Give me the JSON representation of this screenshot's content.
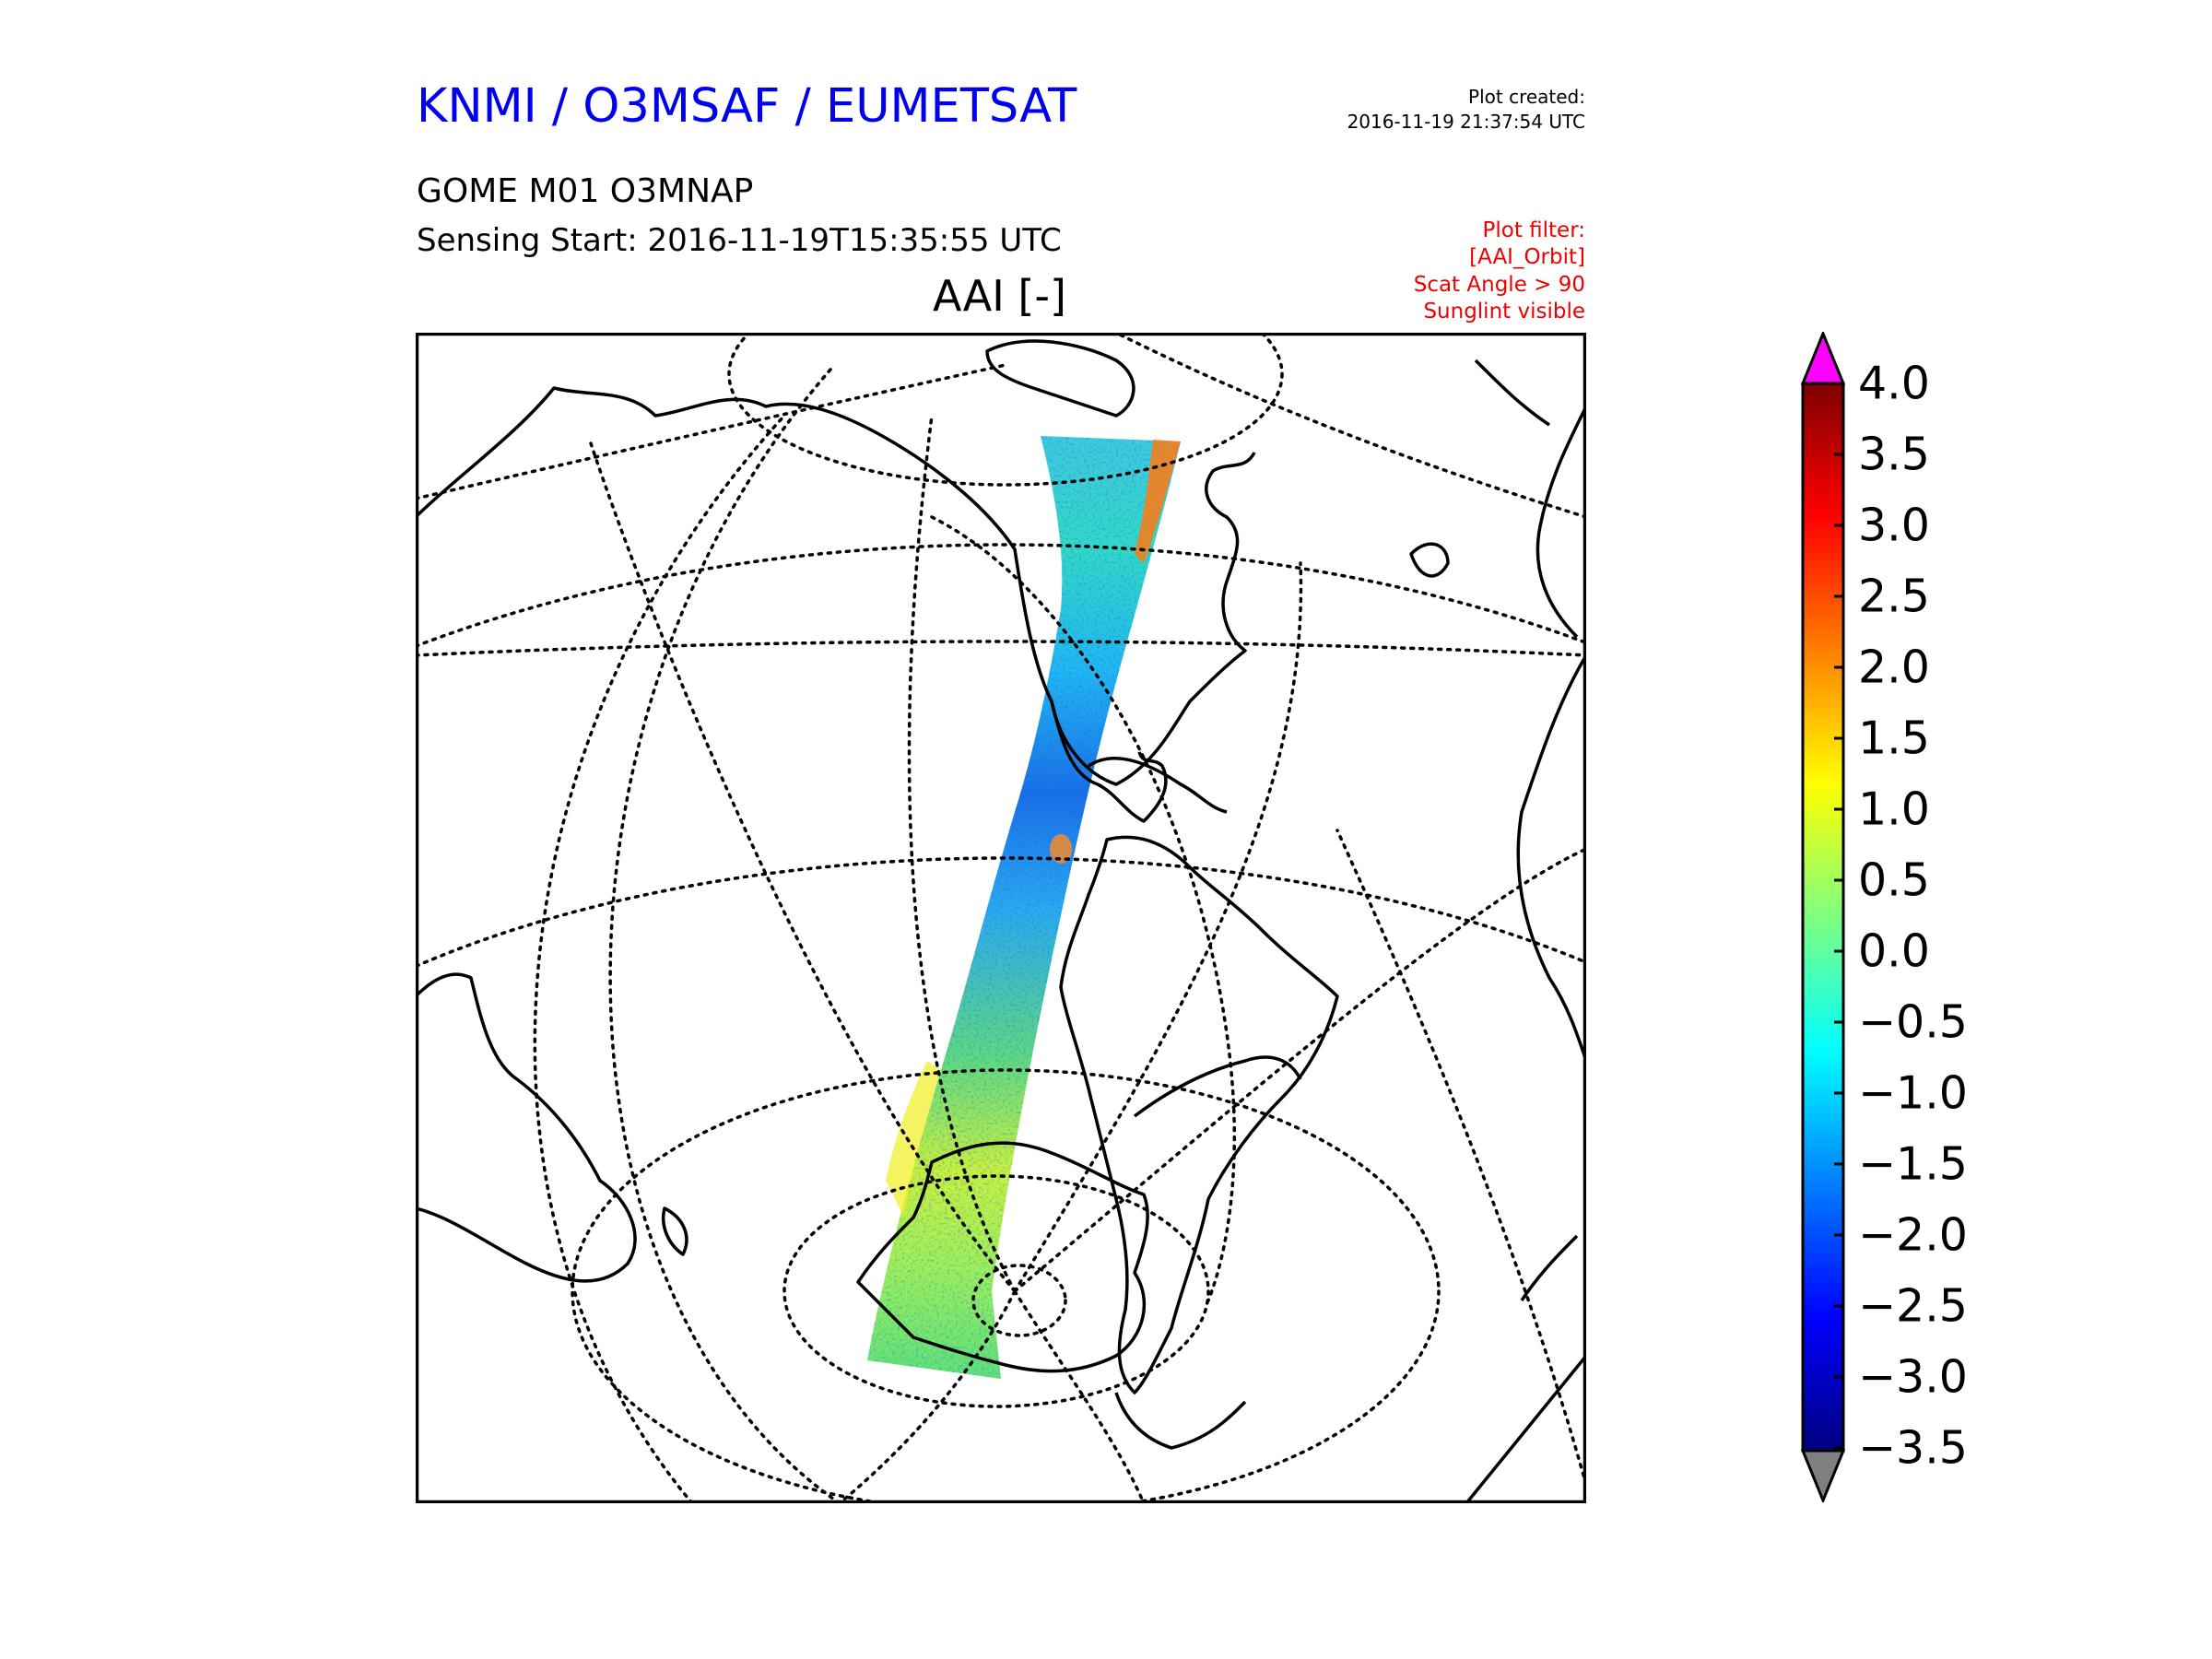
{
  "header": {
    "org_title": "KNMI / O3MSAF / EUMETSAT",
    "plot_created_label": "Plot created:",
    "plot_created_time": "2016-11-19 21:37:54 UTC",
    "product": "GOME M01 O3MNAP",
    "sensing_start": "Sensing Start: 2016-11-19T15:35:55 UTC",
    "filter_lines": [
      "Plot filter:",
      "[AAI_Orbit]",
      "Scat Angle > 90",
      "Sunglint visible"
    ],
    "variable_title": "AAI [-]"
  },
  "map": {
    "projection": "orthographic",
    "graticule": "dotted",
    "coastlines": true,
    "swath_colormap": "jet"
  },
  "colorbar": {
    "min": -3.5,
    "max": 4.0,
    "ticks": [
      "4.0",
      "3.5",
      "3.0",
      "2.5",
      "2.0",
      "1.5",
      "1.0",
      "0.5",
      "0.0",
      "−0.5",
      "−1.0",
      "−1.5",
      "−2.0",
      "−2.5",
      "−3.0",
      "−3.5"
    ],
    "over_color": "#ff00ff",
    "under_color": "#808080",
    "colormap": [
      "#00007f",
      "#0000ff",
      "#007fff",
      "#00ffff",
      "#7fff7f",
      "#ffff00",
      "#ff7f00",
      "#ff0000",
      "#7f0000"
    ]
  },
  "colors": {
    "title_blue": "#0000ee",
    "filter_red": "#ee0000"
  }
}
